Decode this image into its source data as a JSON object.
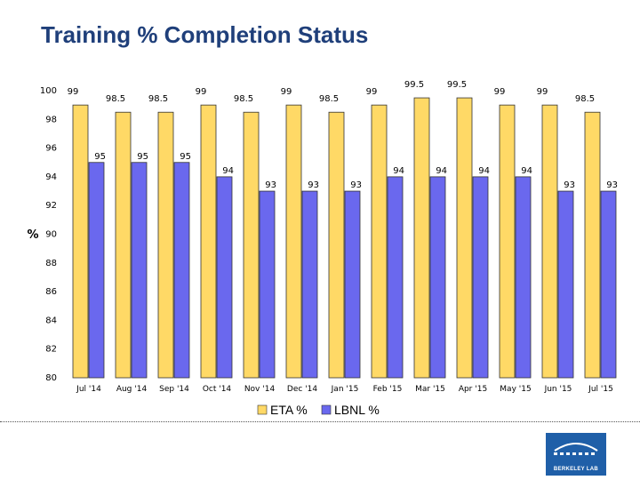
{
  "page": {
    "title": "Training % Completion Status"
  },
  "colors": {
    "eta": "#FFD966",
    "lbnl": "#6A68EE",
    "edge": "#333333",
    "logo_bg": "#1F5FA8"
  },
  "logo": {
    "text": "BERKELEY LAB",
    "icon": "berkeley-lab-logo-icon"
  },
  "chart_data": {
    "type": "bar",
    "title": "Training % Completion Status",
    "xlabel": "",
    "ylabel": "%",
    "ylim": [
      80,
      100
    ],
    "yticks": [
      80,
      82,
      84,
      86,
      88,
      90,
      92,
      94,
      96,
      98,
      100
    ],
    "grid": false,
    "legend": "bottom",
    "categories": [
      "Jul '14",
      "Aug '14",
      "Sep '14",
      "Oct '14",
      "Nov '14",
      "Dec '14",
      "Jan '15",
      "Feb '15",
      "Mar '15",
      "Apr '15",
      "May '15",
      "Jun '15",
      "Jul '15"
    ],
    "series": [
      {
        "name": "ETA %",
        "color": "#FFD966",
        "values": [
          99,
          98.5,
          98.5,
          99,
          98.5,
          99,
          98.5,
          99,
          99.5,
          99.5,
          99,
          99,
          98.5
        ]
      },
      {
        "name": "LBNL %",
        "color": "#6A68EE",
        "values": [
          95,
          95,
          95,
          94,
          93,
          93,
          93,
          94,
          94,
          94,
          94,
          93,
          93
        ]
      }
    ]
  }
}
